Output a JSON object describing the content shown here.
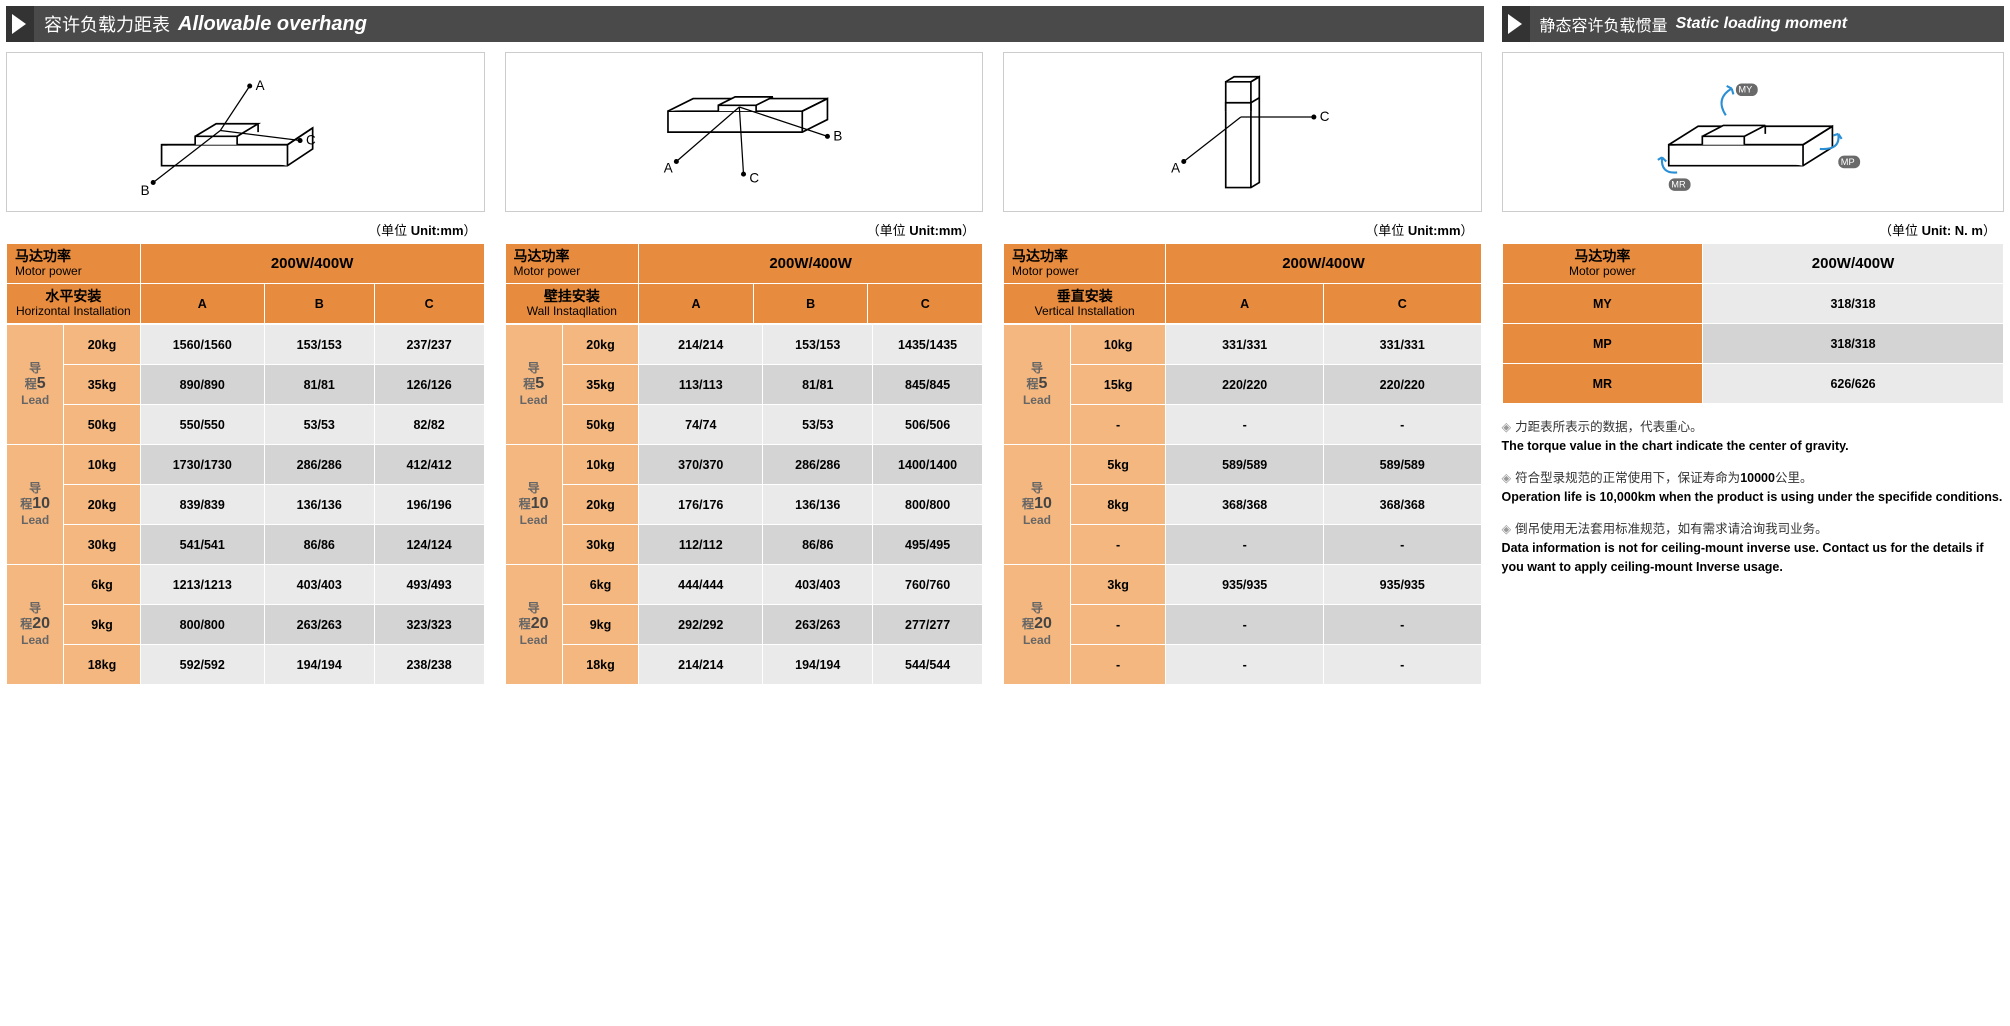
{
  "colors": {
    "orange": "#e78b3e",
    "orangeLight": "#f4b77f",
    "grey1": "#eaeaea",
    "grey2": "#d4d4d4",
    "headerBg": "#4a4a4a",
    "border": "#fff",
    "text": "#000"
  },
  "header1": {
    "cn": "容许负载力距表",
    "en": "Allowable overhang"
  },
  "header2": {
    "cn": "静态容许负载惯量",
    "en": "Static loading moment"
  },
  "unit_mm": {
    "cn": "（单位 ",
    "b": "Unit:mm",
    "close": "）"
  },
  "unit_nm": {
    "cn": "（单位 ",
    "b": "Unit:   N.  m",
    "close": "）"
  },
  "motorPower": {
    "cn": "马达功率",
    "en": "Motor power"
  },
  "powerVal": "200W/400W",
  "install": {
    "h": {
      "cn": "水平安装",
      "en": "Horizontal Installation"
    },
    "w": {
      "cn": "壁挂安装",
      "en": "Wall Instaqllation"
    },
    "v": {
      "cn": "垂直安装",
      "en": "Vertical Installation"
    }
  },
  "cols": {
    "A": "A",
    "B": "B",
    "C": "C"
  },
  "lead": {
    "cn": "导程",
    "en": "Lead"
  },
  "leads": [
    "5",
    "10",
    "20"
  ],
  "t1": {
    "g": [
      {
        "lead": "5",
        "rows": [
          [
            "20kg",
            "1560/1560",
            "153/153",
            "237/237"
          ],
          [
            "35kg",
            "890/890",
            "81/81",
            "126/126"
          ],
          [
            "50kg",
            "550/550",
            "53/53",
            "82/82"
          ]
        ]
      },
      {
        "lead": "10",
        "rows": [
          [
            "10kg",
            "1730/1730",
            "286/286",
            "412/412"
          ],
          [
            "20kg",
            "839/839",
            "136/136",
            "196/196"
          ],
          [
            "30kg",
            "541/541",
            "86/86",
            "124/124"
          ]
        ]
      },
      {
        "lead": "20",
        "rows": [
          [
            "6kg",
            "1213/1213",
            "403/403",
            "493/493"
          ],
          [
            "9kg",
            "800/800",
            "263/263",
            "323/323"
          ],
          [
            "18kg",
            "592/592",
            "194/194",
            "238/238"
          ]
        ]
      }
    ]
  },
  "t2": {
    "g": [
      {
        "lead": "5",
        "rows": [
          [
            "20kg",
            "214/214",
            "153/153",
            "1435/1435"
          ],
          [
            "35kg",
            "113/113",
            "81/81",
            "845/845"
          ],
          [
            "50kg",
            "74/74",
            "53/53",
            "506/506"
          ]
        ]
      },
      {
        "lead": "10",
        "rows": [
          [
            "10kg",
            "370/370",
            "286/286",
            "1400/1400"
          ],
          [
            "20kg",
            "176/176",
            "136/136",
            "800/800"
          ],
          [
            "30kg",
            "112/112",
            "86/86",
            "495/495"
          ]
        ]
      },
      {
        "lead": "20",
        "rows": [
          [
            "6kg",
            "444/444",
            "403/403",
            "760/760"
          ],
          [
            "9kg",
            "292/292",
            "263/263",
            "277/277"
          ],
          [
            "18kg",
            "214/214",
            "194/194",
            "544/544"
          ]
        ]
      }
    ]
  },
  "t3": {
    "g": [
      {
        "lead": "5",
        "rows": [
          [
            "10kg",
            "331/331",
            "331/331"
          ],
          [
            "15kg",
            "220/220",
            "220/220"
          ],
          [
            "-",
            "-",
            "-"
          ]
        ]
      },
      {
        "lead": "10",
        "rows": [
          [
            "5kg",
            "589/589",
            "589/589"
          ],
          [
            "8kg",
            "368/368",
            "368/368"
          ],
          [
            "-",
            "-",
            "-"
          ]
        ]
      },
      {
        "lead": "20",
        "rows": [
          [
            "3kg",
            "935/935",
            "935/935"
          ],
          [
            "-",
            "-",
            "-"
          ],
          [
            "-",
            "-",
            "-"
          ]
        ]
      }
    ]
  },
  "t4": {
    "rows": [
      [
        "MY",
        "318/318"
      ],
      [
        "MP",
        "318/318"
      ],
      [
        "MR",
        "626/626"
      ]
    ]
  },
  "diagLabels": {
    "A": "A",
    "B": "B",
    "C": "C",
    "MY": "MY",
    "MP": "MP",
    "MR": "MR"
  },
  "notes": [
    {
      "cn": "力距表所表示的数据，代表重心。",
      "en": "The torque value in the chart indicate the center of gravity."
    },
    {
      "cn": "符合型录规范的正常使用下，保证寿命为",
      "bold": "10000",
      "cn2": "公里。",
      "en": "Operation life is 10,000km when the product is using under the specifide conditions."
    },
    {
      "cn": "倒吊使用无法套用标准规范，如有需求请洽询我司业务。",
      "en": "Data information is not for ceiling-mount inverse use. Contact us for the details if you want to apply ceiling-mount Inverse usage."
    }
  ]
}
